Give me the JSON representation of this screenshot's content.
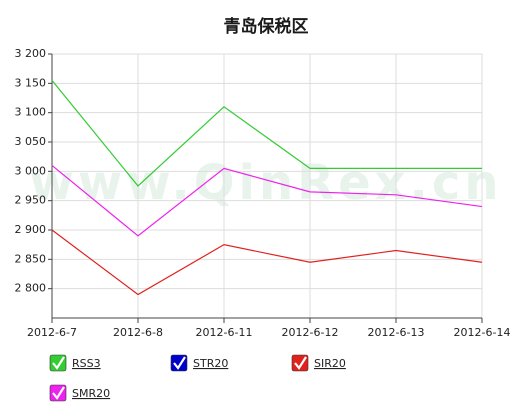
{
  "chart_data": {
    "type": "line",
    "title": "青岛保税区",
    "watermark": "www.QinRex.cn",
    "categories": [
      "2012-6-7",
      "2012-6-8",
      "2012-6-11",
      "2012-6-12",
      "2012-6-13",
      "2012-6-14"
    ],
    "series": [
      {
        "name": "RSS3",
        "color": "#33cc33",
        "values": [
          3155,
          2975,
          3110,
          3005,
          3005,
          3005
        ]
      },
      {
        "name": "STR20",
        "color": "#0000cc",
        "values": [
          null,
          null,
          null,
          null,
          null,
          null
        ]
      },
      {
        "name": "SIR20",
        "color": "#e0221e",
        "values": [
          2900,
          2790,
          2875,
          2845,
          2865,
          2845
        ]
      },
      {
        "name": "SMR20",
        "color": "#ee22ee",
        "values": [
          3010,
          2890,
          3005,
          2965,
          2960,
          2940
        ]
      }
    ],
    "ylim": [
      2750,
      3200
    ],
    "yticks": [
      {
        "value": 2800,
        "label": "2 800"
      },
      {
        "value": 2850,
        "label": "2 850"
      },
      {
        "value": 2900,
        "label": "2 900"
      },
      {
        "value": 2950,
        "label": "2 950"
      },
      {
        "value": 3000,
        "label": "3 000"
      },
      {
        "value": 3050,
        "label": "3 050"
      },
      {
        "value": 3100,
        "label": "3 100"
      },
      {
        "value": 3150,
        "label": "3 150"
      },
      {
        "value": 3200,
        "label": "3 200"
      }
    ],
    "grid": true
  }
}
